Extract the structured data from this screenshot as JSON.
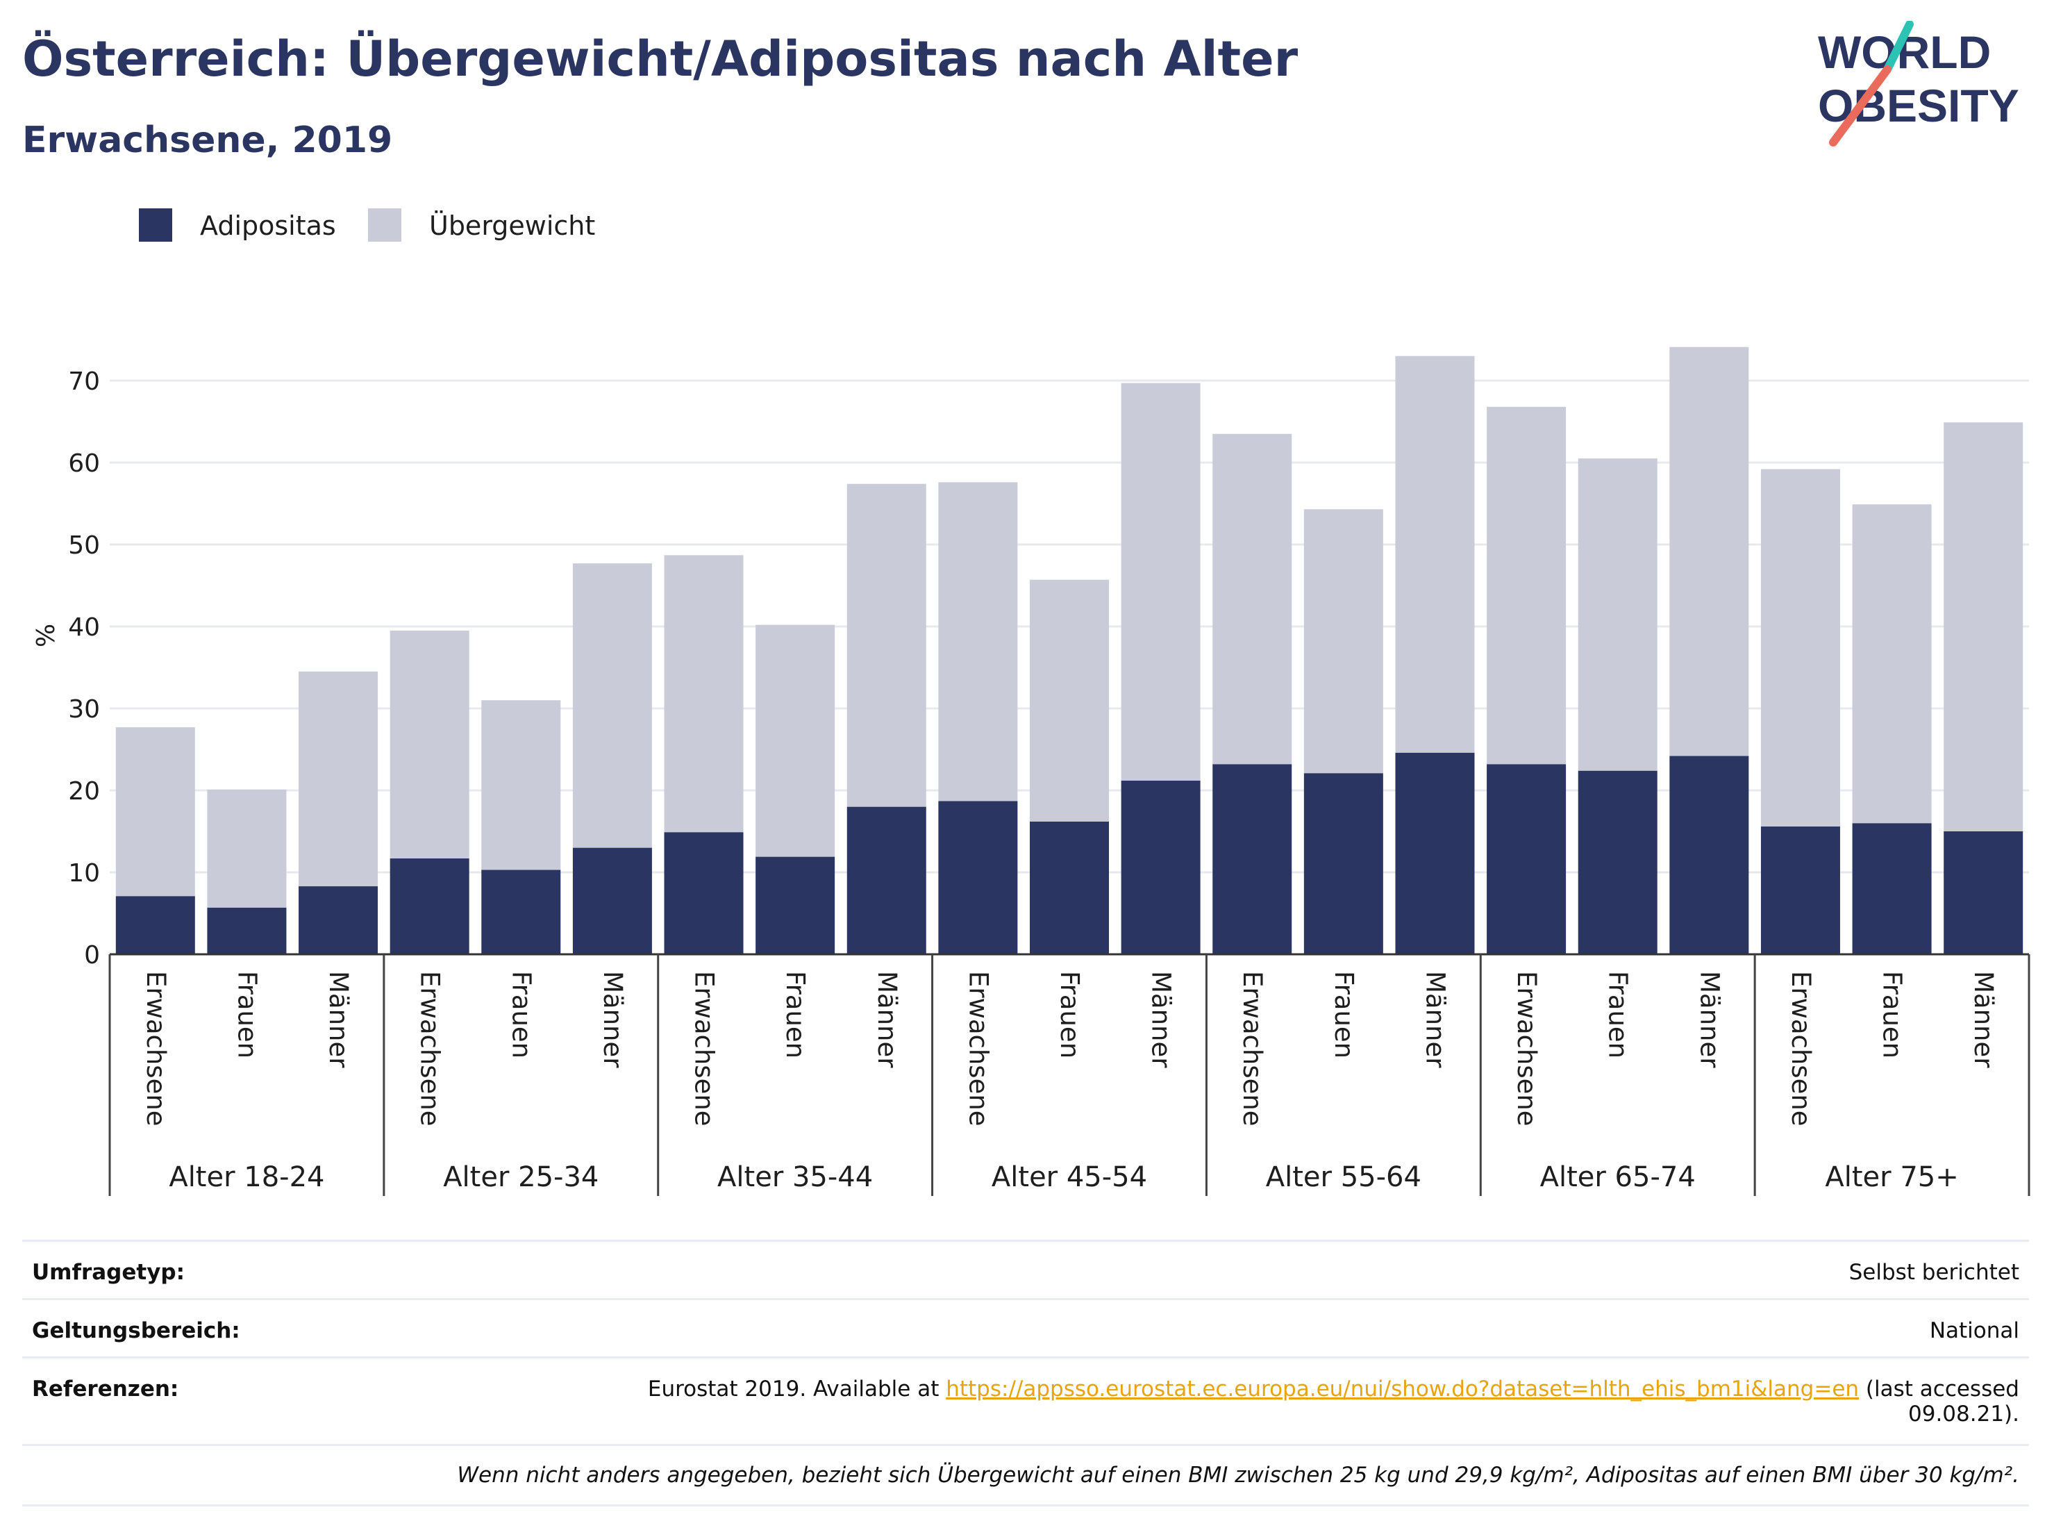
{
  "header": {
    "title": "Österreich: Übergewicht/Adipositas nach Alter",
    "subtitle": "Erwachsene, 2019"
  },
  "logo": {
    "line1": "WORLD",
    "line2": "OBESITY"
  },
  "colors": {
    "adipositas": "#2b3561",
    "uebergewicht": "#c9ccd8",
    "accent_teal": "#2cc3b5",
    "accent_red": "#ea6b5c",
    "link": "#e8a40f"
  },
  "chart_data": {
    "type": "bar",
    "stacked": true,
    "ylabel": "%",
    "ylim": [
      0,
      80
    ],
    "yticks": [
      0,
      10,
      20,
      30,
      40,
      50,
      60,
      70
    ],
    "grid": true,
    "legend_position": "top-left",
    "groups": [
      "Alter 18-24",
      "Alter 25-34",
      "Alter 35-44",
      "Alter 45-54",
      "Alter 55-64",
      "Alter 65-74",
      "Alter 75+"
    ],
    "subcategories": [
      "Erwachsene",
      "Frauen",
      "Männer"
    ],
    "series": [
      {
        "name": "Adipositas",
        "values": [
          7.1,
          5.7,
          8.3,
          11.7,
          10.3,
          13.0,
          14.9,
          11.9,
          18.0,
          18.7,
          16.2,
          21.2,
          23.2,
          22.1,
          24.6,
          23.2,
          22.4,
          24.2,
          15.6,
          16.0,
          15.0
        ]
      },
      {
        "name": "Übergewicht",
        "values": [
          20.6,
          14.4,
          26.2,
          27.8,
          20.7,
          34.7,
          33.8,
          28.3,
          39.4,
          38.9,
          29.5,
          48.5,
          40.3,
          32.2,
          48.4,
          43.6,
          38.1,
          49.9,
          43.6,
          38.9,
          49.9
        ]
      }
    ]
  },
  "info": {
    "rows": [
      {
        "key": "Umfragetyp:",
        "value": "Selbst berichtet"
      },
      {
        "key": "Geltungsbereich:",
        "value": "National"
      }
    ],
    "ref_key": "Referenzen:",
    "ref_prefix": "Eurostat 2019. Available at ",
    "ref_link": "https://appsso.eurostat.ec.europa.eu/nui/show.do?dataset=hlth_ehis_bm1i&lang=en",
    "ref_suffix": " (last accessed 09.08.21).",
    "footnote": "Wenn nicht anders angegeben, bezieht sich Übergewicht auf einen BMI zwischen 25 kg und 29,9 kg/m², Adipositas auf einen BMI über 30 kg/m²."
  }
}
